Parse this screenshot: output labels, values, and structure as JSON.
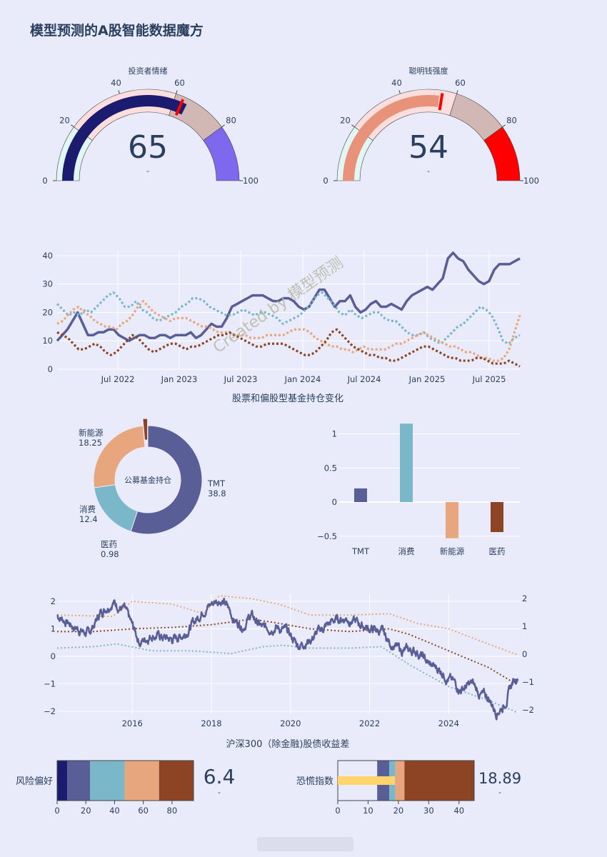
{
  "page": {
    "title": "模型预测的A股智能数据魔方"
  },
  "colors": {
    "bg": "#e9ebfa",
    "navy": "#1b1b6f",
    "purple": "#5a5e96",
    "teal": "#79b7c9",
    "salmon": "#e8a67e",
    "brown": "#8c4424",
    "gaugeLight": "#e0f7f5",
    "gaugePink": "#fbdfdf",
    "gaugeGrey": "#d2b8b4",
    "gaugeViolet": "#7e69ee",
    "gaugeRed": "#ff0000",
    "gaugeSalmon": "#e9927a",
    "yellow": "#ffd56b"
  },
  "watermark": {
    "text": "Created by 模型预测"
  },
  "chart_data": [
    {
      "id": "gauge_sentiment",
      "type": "gauge",
      "title": "投资者情绪",
      "value": 65,
      "delta_text": "-",
      "range": [
        0,
        100
      ],
      "ticks": [
        "0",
        "20",
        "40",
        "60",
        "80",
        "100"
      ],
      "steps": [
        [
          0,
          20,
          "#e0f7f5"
        ],
        [
          20,
          60,
          "#fbdfdf"
        ],
        [
          60,
          80,
          "#d2b8b4"
        ],
        [
          80,
          100,
          "#7e69ee"
        ]
      ],
      "threshold": 63
    },
    {
      "id": "gauge_smart_money",
      "type": "gauge",
      "title": "聪明钱强度",
      "value": 54,
      "delta_text": "-",
      "range": [
        0,
        100
      ],
      "ticks": [
        "0",
        "20",
        "40",
        "60",
        "80",
        "100"
      ],
      "steps": [
        [
          0,
          20,
          "#e0f7f5"
        ],
        [
          20,
          60,
          "#fbdfdf"
        ],
        [
          60,
          80,
          "#d2b8b4"
        ],
        [
          80,
          100,
          "#ff0000"
        ]
      ],
      "threshold": 55
    },
    {
      "id": "fund_holdings_lines",
      "type": "line",
      "title": "股票和偏股型基金持仓变化",
      "y_ticks": [
        "0",
        "10",
        "20",
        "30",
        "40"
      ],
      "ylim": [
        0,
        42
      ],
      "x_ticks": [
        "Jul 2022",
        "Jan 2023",
        "Jul 2023",
        "Jan 2024",
        "Jul 2024",
        "Jan 2025",
        "Jul 2025"
      ],
      "x_range": [
        "2022-01",
        "2025-10"
      ],
      "series": [
        {
          "color": "#5a5e96",
          "dash": "solid",
          "values": [
            10,
            12,
            14,
            17,
            20,
            16,
            12,
            12,
            13,
            13,
            14,
            14,
            12,
            11,
            10,
            11,
            12,
            12,
            11,
            11,
            12,
            12,
            11,
            12,
            12,
            12,
            13,
            11,
            12,
            14,
            16,
            15,
            15,
            18,
            22,
            23,
            24,
            25,
            26,
            26,
            26,
            25,
            24,
            24,
            25,
            25,
            24,
            22,
            21,
            22,
            25,
            28,
            28,
            25,
            22,
            24,
            24,
            26,
            22,
            20,
            21,
            23,
            24,
            22,
            22,
            23,
            22,
            21,
            24,
            26,
            27,
            28,
            29,
            28,
            30,
            32,
            39,
            41,
            39,
            38,
            35,
            33,
            31,
            30,
            31,
            35,
            37,
            37,
            37,
            38,
            39
          ]
        },
        {
          "color": "#79b7c9",
          "dash": "dot",
          "values": [
            23,
            21,
            19,
            20,
            19,
            21,
            20,
            22,
            24,
            26,
            27,
            25,
            22,
            22,
            24,
            21,
            20,
            18,
            17,
            18,
            19,
            20,
            22,
            23,
            25,
            25,
            24,
            22,
            21,
            20,
            19,
            19,
            20,
            21,
            20,
            19,
            20,
            20,
            19,
            18,
            16,
            17,
            18,
            19,
            21,
            23,
            26,
            27,
            25,
            23,
            20,
            19,
            21,
            19,
            18,
            19,
            20,
            20,
            18,
            17,
            17,
            15,
            13,
            12,
            12,
            13,
            11,
            10,
            9,
            11,
            13,
            15,
            16,
            18,
            20,
            22,
            21,
            19,
            15,
            10,
            9,
            11,
            12
          ]
        },
        {
          "color": "#e8a67e",
          "dash": "dot",
          "values": [
            16,
            17,
            19,
            21,
            22,
            20,
            19,
            17,
            16,
            15,
            15,
            14,
            16,
            17,
            19,
            22,
            24,
            22,
            20,
            19,
            18,
            17,
            18,
            18,
            18,
            17,
            16,
            15,
            15,
            14,
            13,
            13,
            13,
            12,
            12,
            12,
            11,
            11,
            11,
            12,
            12,
            12,
            12,
            13,
            14,
            14,
            14,
            13,
            11,
            10,
            9,
            8,
            8,
            7,
            7,
            6,
            7,
            8,
            7,
            7,
            7,
            7,
            8,
            9,
            9,
            10,
            11,
            12,
            13,
            12,
            11,
            10,
            9,
            8,
            8,
            7,
            6,
            6,
            5,
            4,
            4,
            3,
            3,
            4,
            7,
            13,
            19
          ]
        },
        {
          "color": "#8c4424",
          "dash": "dot",
          "values": [
            13,
            12,
            11,
            9,
            7,
            7,
            8,
            9,
            8,
            6,
            5,
            6,
            8,
            10,
            12,
            11,
            9,
            7,
            6,
            7,
            8,
            9,
            9,
            8,
            7,
            8,
            8,
            9,
            10,
            11,
            12,
            12,
            13,
            12,
            11,
            10,
            9,
            8,
            8,
            9,
            9,
            9,
            9,
            8,
            7,
            6,
            5,
            5,
            6,
            8,
            10,
            13,
            14,
            12,
            10,
            8,
            7,
            6,
            5,
            5,
            4,
            4,
            3,
            3,
            4,
            5,
            6,
            7,
            8,
            8,
            7,
            6,
            5,
            4,
            4,
            3,
            3,
            3,
            4,
            4,
            3,
            2,
            2,
            2,
            3,
            2,
            1
          ]
        }
      ]
    },
    {
      "id": "donut_public_funds",
      "type": "pie",
      "center_text": "公募基金持仓",
      "labels": [
        "TMT",
        "消费",
        "新能源",
        "医药"
      ],
      "values": [
        38.8,
        12.4,
        18.25,
        0.98
      ],
      "value_texts": [
        "38.8",
        "12.4",
        "18.25",
        "0.98"
      ],
      "colors": [
        "#5a5e96",
        "#79b7c9",
        "#e8a67e",
        "#8c4424"
      ]
    },
    {
      "id": "sector_bars",
      "type": "bar",
      "categories": [
        "TMT",
        "消费",
        "新能源",
        "医药"
      ],
      "values": [
        0.2,
        1.15,
        -0.53,
        -0.44
      ],
      "colors": [
        "#5a5e96",
        "#79b7c9",
        "#e8a67e",
        "#8c4424"
      ],
      "y_ticks": [
        "−0.5",
        "0",
        "0.5",
        "1"
      ],
      "ylim": [
        -0.6,
        1.2
      ]
    },
    {
      "id": "equity_bond_spread",
      "type": "line",
      "title": "沪深300（除金融)股债收益差",
      "y_ticks_left": [
        "−2",
        "−1",
        "0",
        "1",
        "2"
      ],
      "y_ticks_right": [
        "−2",
        "−1",
        "0",
        "1",
        "2"
      ],
      "ylim": [
        -2.1,
        2.2
      ],
      "x_ticks": [
        "2016",
        "2018",
        "2020",
        "2022",
        "2024"
      ],
      "x_range": [
        2014.1,
        2025.8
      ]
    },
    {
      "id": "bullet_risk_appetite",
      "type": "bullet",
      "label": "风险偏好",
      "value": 6.4,
      "value_text": "6.4",
      "delta_text": "-",
      "ticks": [
        "0",
        "20",
        "40",
        "60",
        "80"
      ],
      "range": [
        0,
        95
      ],
      "steps": [
        [
          0,
          7,
          "#1b1b6f"
        ],
        [
          7,
          23,
          "#5a5e96"
        ],
        [
          23,
          47,
          "#79b7c9"
        ],
        [
          47,
          71,
          "#e8a67e"
        ],
        [
          71,
          95,
          "#8c4424"
        ]
      ],
      "bar_value": 6.4
    },
    {
      "id": "bullet_fear_index",
      "type": "bullet",
      "label": "恐慌指数",
      "value": 18.89,
      "value_text": "18.89",
      "delta_text": "-",
      "ticks": [
        "0",
        "10",
        "20",
        "30",
        "40"
      ],
      "range": [
        0,
        45
      ],
      "steps": [
        [
          0,
          13,
          "#e9ebfa"
        ],
        [
          13,
          17,
          "#5a5e96"
        ],
        [
          17,
          19,
          "#79b7c9"
        ],
        [
          19,
          22,
          "#e8a67e"
        ],
        [
          22,
          45,
          "#8c4424"
        ]
      ],
      "bar_value": 18.89
    }
  ]
}
